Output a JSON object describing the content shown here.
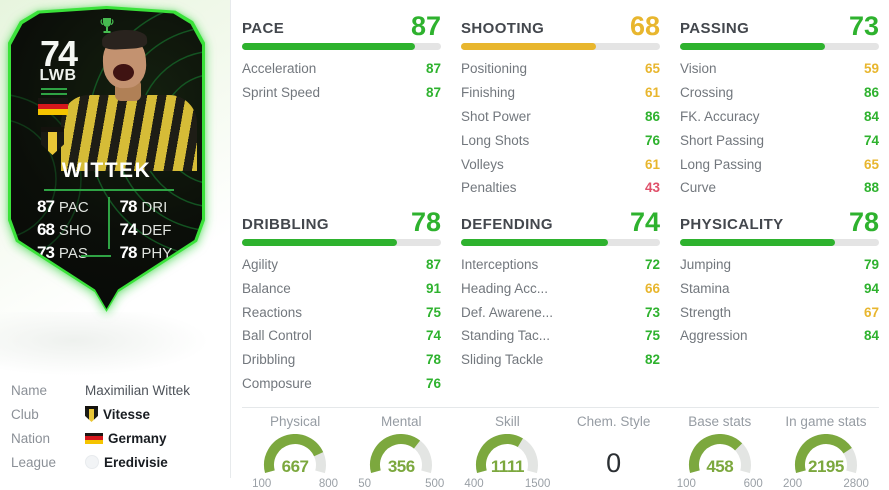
{
  "card": {
    "rating": "74",
    "position": "LWB",
    "name": "WITTEK",
    "trophy_icon": "conference-league-trophy-icon",
    "quick_stats_left": [
      {
        "value": "87",
        "label": "PAC"
      },
      {
        "value": "68",
        "label": "SHO"
      },
      {
        "value": "73",
        "label": "PAS"
      }
    ],
    "quick_stats_right": [
      {
        "value": "78",
        "label": "DRI"
      },
      {
        "value": "74",
        "label": "DEF"
      },
      {
        "value": "78",
        "label": "PHY"
      }
    ]
  },
  "player_info": {
    "rows": [
      {
        "label": "Name",
        "value": "Maximilian Wittek"
      },
      {
        "label": "Club",
        "value": "Vitesse"
      },
      {
        "label": "Nation",
        "value": "Germany"
      },
      {
        "label": "League",
        "value": "Eredivisie"
      }
    ]
  },
  "stat_sections": [
    {
      "title": "PACE",
      "value": 87,
      "stats": [
        {
          "label": "Acceleration",
          "value": 87
        },
        {
          "label": "Sprint Speed",
          "value": 87
        }
      ]
    },
    {
      "title": "SHOOTING",
      "value": 68,
      "stats": [
        {
          "label": "Positioning",
          "value": 65
        },
        {
          "label": "Finishing",
          "value": 61
        },
        {
          "label": "Shot Power",
          "value": 86
        },
        {
          "label": "Long Shots",
          "value": 76
        },
        {
          "label": "Volleys",
          "value": 61
        },
        {
          "label": "Penalties",
          "value": 43
        }
      ]
    },
    {
      "title": "PASSING",
      "value": 73,
      "stats": [
        {
          "label": "Vision",
          "value": 59
        },
        {
          "label": "Crossing",
          "value": 86
        },
        {
          "label": "FK. Accuracy",
          "value": 84
        },
        {
          "label": "Short Passing",
          "value": 74
        },
        {
          "label": "Long Passing",
          "value": 65
        },
        {
          "label": "Curve",
          "value": 88
        }
      ]
    },
    {
      "title": "DRIBBLING",
      "value": 78,
      "stats": [
        {
          "label": "Agility",
          "value": 87
        },
        {
          "label": "Balance",
          "value": 91
        },
        {
          "label": "Reactions",
          "value": 75
        },
        {
          "label": "Ball Control",
          "value": 74
        },
        {
          "label": "Dribbling",
          "value": 78
        },
        {
          "label": "Composure",
          "value": 76
        }
      ]
    },
    {
      "title": "DEFENDING",
      "value": 74,
      "stats": [
        {
          "label": "Interceptions",
          "value": 72
        },
        {
          "label": "Heading Acc...",
          "value": 66
        },
        {
          "label": "Def. Awarene...",
          "value": 73
        },
        {
          "label": "Standing Tac...",
          "value": 75
        },
        {
          "label": "Sliding Tackle",
          "value": 82
        }
      ]
    },
    {
      "title": "PHYSICALITY",
      "value": 78,
      "stats": [
        {
          "label": "Jumping",
          "value": 79
        },
        {
          "label": "Stamina",
          "value": 94
        },
        {
          "label": "Strength",
          "value": 67
        },
        {
          "label": "Aggression",
          "value": 84
        }
      ]
    }
  ],
  "summary_gauges": [
    {
      "label": "Physical",
      "value": 667,
      "min": 100,
      "max": 800
    },
    {
      "label": "Mental",
      "value": 356,
      "min": 50,
      "max": 500
    },
    {
      "label": "Skill",
      "value": 1111,
      "min": 400,
      "max": 1500
    },
    {
      "label": "Chem. Style",
      "value": 0
    },
    {
      "label": "Base stats",
      "value": 458,
      "min": 100,
      "max": 600
    },
    {
      "label": "In game stats",
      "value": 2195,
      "min": 200,
      "max": 2800
    }
  ],
  "colors": {
    "stat_high": "#2eb22e",
    "stat_mid": "#e8b62e",
    "stat_low": "#e0506a",
    "gauge_accent": "#7ca83e",
    "card_border": "#3ae23a"
  }
}
